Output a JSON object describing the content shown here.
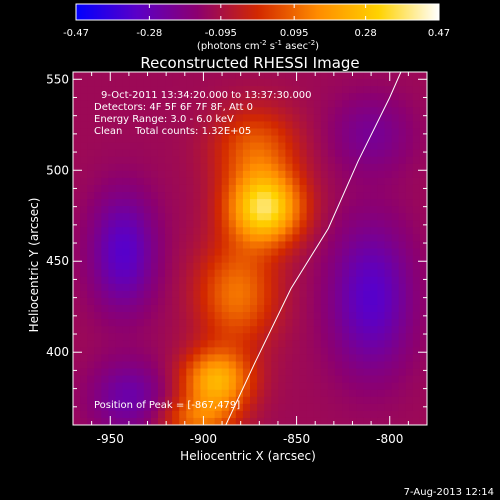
{
  "chart_data": {
    "type": "heatmap",
    "title": "Reconstructed RHESSI Image",
    "colorbar": {
      "ticks": [
        "-0.47",
        "-0.28",
        "-0.095",
        "0.095",
        "0.28",
        "0.47"
      ],
      "tick_values": [
        -0.47,
        -0.28,
        -0.095,
        0.095,
        0.28,
        0.47
      ],
      "range": [
        -0.47,
        0.47
      ],
      "label_base": "(photons cm",
      "label_exp1": "-2",
      "label_mid": " s",
      "label_exp2": "-1",
      "label_end": " asec",
      "label_exp3": "-2",
      "label_close": ")",
      "colors": [
        "#0000ff",
        "#5a00c8",
        "#8c0070",
        "#d22800",
        "#ff8c00",
        "#ffd200",
        "#ffffff"
      ]
    },
    "xlabel": "Heliocentric X (arcsec)",
    "ylabel": "Heliocentric Y (arcsec)",
    "x_ticks": [
      -950,
      -900,
      -850,
      -800
    ],
    "y_ticks": [
      400,
      450,
      500,
      550
    ],
    "xlim": [
      -970,
      -780
    ],
    "ylim": [
      360,
      554
    ],
    "annotations": {
      "time": "9-Oct-2011 13:34:20.000 to 13:37:30.000",
      "detectors": "Detectors: 4F 5F 6F 7F 8F, Att 0",
      "energy": "Energy Range: 3.0 - 6.0 keV",
      "clean": "Clean    Total counts: 1.32E+05",
      "peak": "Position of Peak = [-867,479]"
    },
    "sources": [
      {
        "x": -867,
        "y": 479,
        "amplitude": 0.47,
        "sx": 14,
        "sy": 14
      },
      {
        "x": -893,
        "y": 384,
        "amplitude": 0.36,
        "sx": 13,
        "sy": 12
      },
      {
        "x": -882,
        "y": 432,
        "amplitude": 0.24,
        "sx": 15,
        "sy": 20
      },
      {
        "x": -872,
        "y": 512,
        "amplitude": 0.2,
        "sx": 16,
        "sy": 16
      },
      {
        "x": -903,
        "y": 363,
        "amplitude": 0.2,
        "sx": 14,
        "sy": 8
      },
      {
        "x": -943,
        "y": 455,
        "amplitude": -0.2,
        "sx": 12,
        "sy": 22
      },
      {
        "x": -810,
        "y": 430,
        "amplitude": -0.2,
        "sx": 15,
        "sy": 28
      },
      {
        "x": -940,
        "y": 375,
        "amplitude": -0.14,
        "sx": 14,
        "sy": 14
      },
      {
        "x": -810,
        "y": 520,
        "amplitude": -0.1,
        "sx": 15,
        "sy": 15
      }
    ],
    "background_level": -0.12,
    "limb": [
      [
        -888,
        360
      ],
      [
        -872,
        395
      ],
      [
        -853,
        435
      ],
      [
        -833,
        468
      ],
      [
        -817,
        505
      ],
      [
        -800,
        540
      ],
      [
        -794,
        554
      ]
    ]
  },
  "footer": {
    "timestamp": "7-Aug-2013 12:14"
  }
}
